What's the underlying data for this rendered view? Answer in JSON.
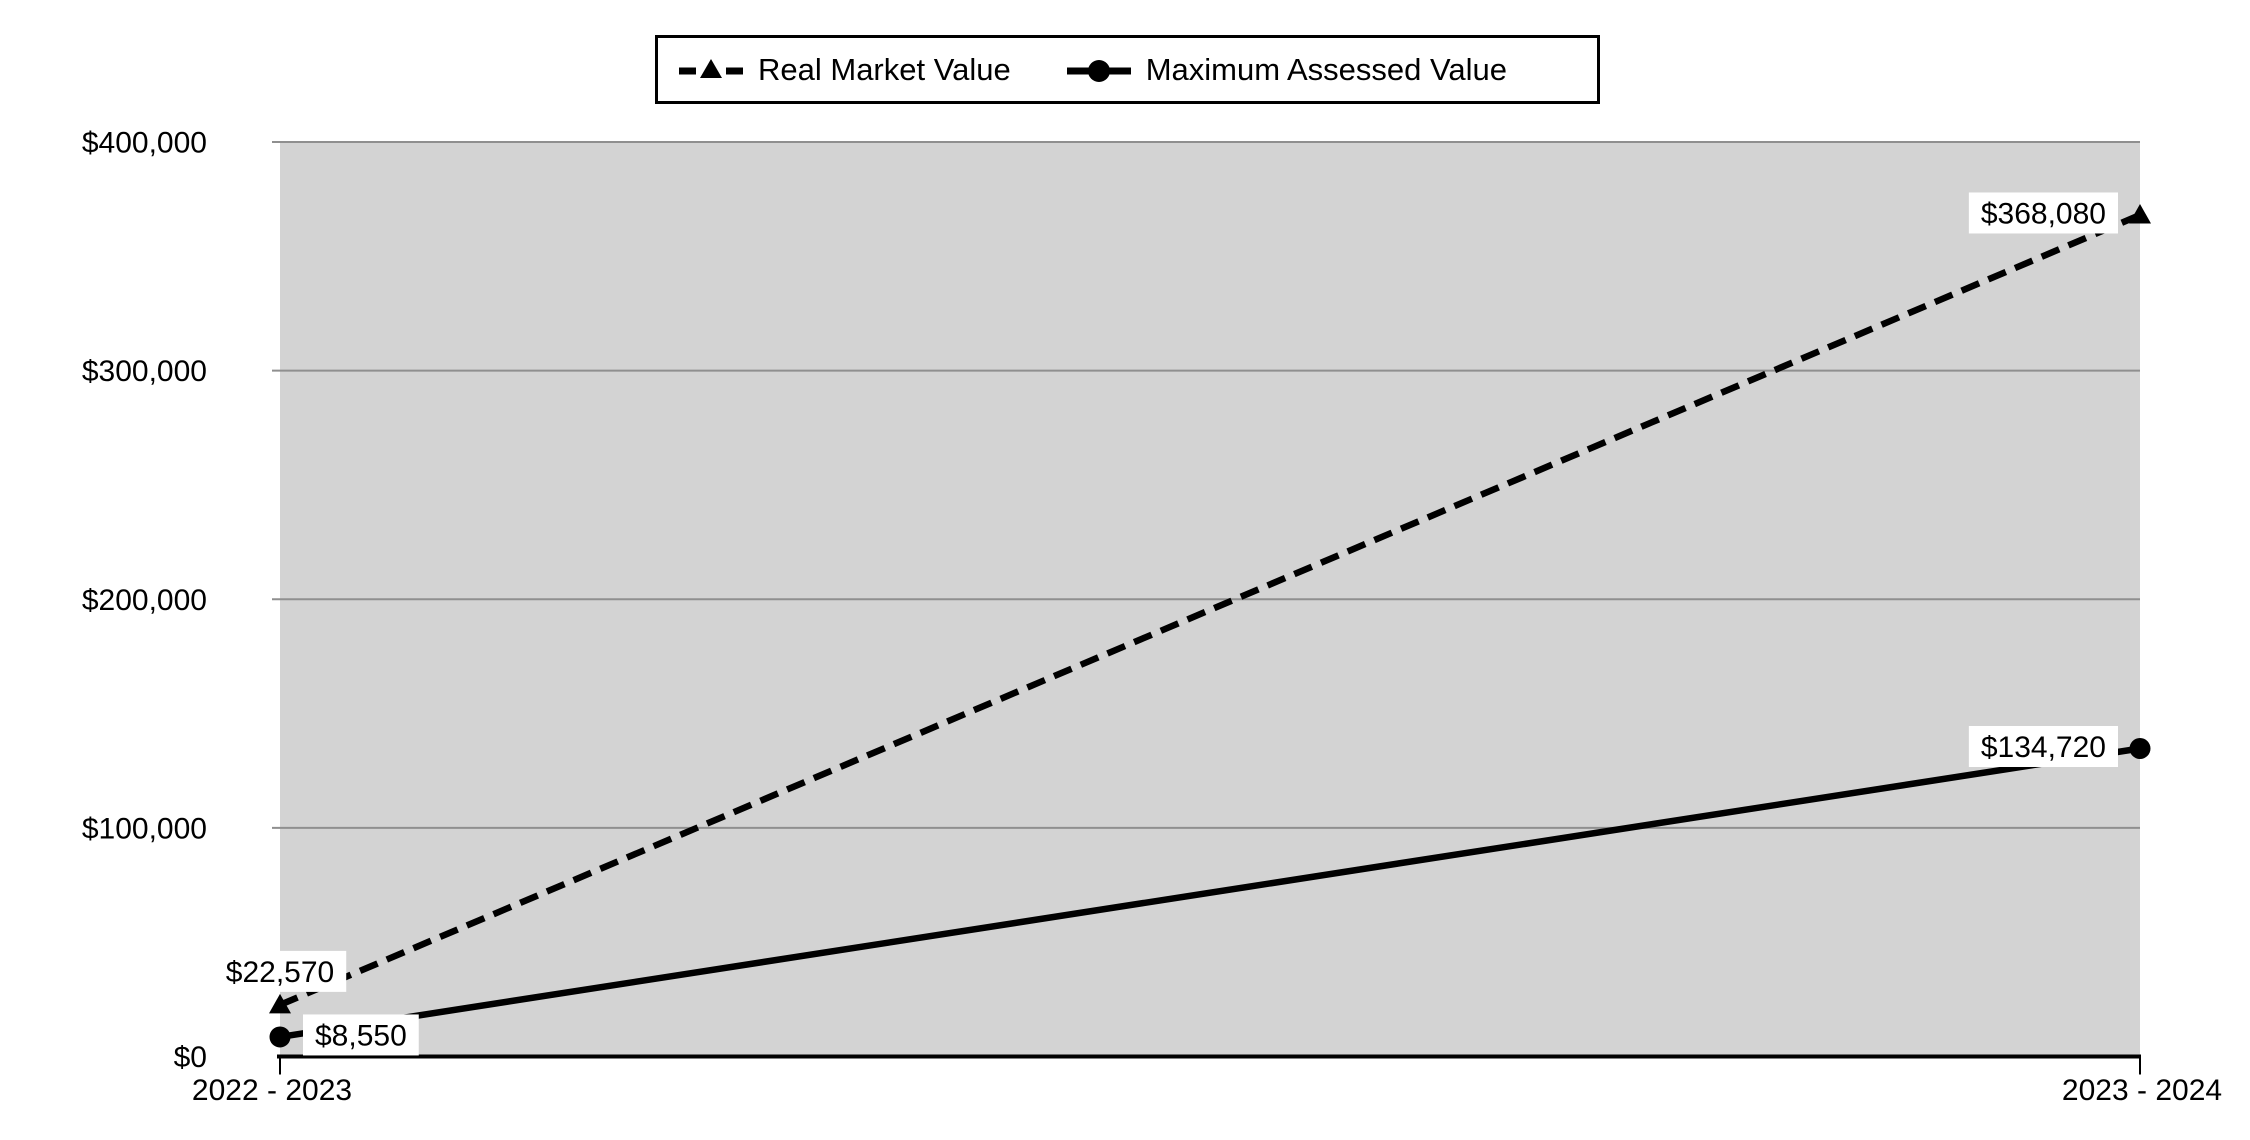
{
  "chart_data": {
    "type": "line",
    "title": "",
    "categories": [
      "2022 - 2023",
      "2023 - 2024"
    ],
    "series": [
      {
        "name": "Real Market Value",
        "values": [
          22570,
          368080
        ],
        "data_labels": [
          "$22,570",
          "$368,080"
        ],
        "line_style": "dashed",
        "marker": "triangle",
        "color": "#000000",
        "label_placement": [
          "above",
          "left"
        ]
      },
      {
        "name": "Maximum Assessed Value",
        "values": [
          8550,
          134720
        ],
        "data_labels": [
          "$8,550",
          "$134,720"
        ],
        "line_style": "solid",
        "marker": "circle",
        "color": "#000000",
        "label_placement": [
          "right",
          "left"
        ]
      }
    ],
    "y_axis": {
      "min": 0,
      "max": 400000,
      "tick_values": [
        0,
        100000,
        200000,
        300000,
        400000
      ],
      "tick_labels": [
        "$0",
        "$100,000",
        "$200,000",
        "$300,000",
        "$400,000"
      ]
    },
    "legend_position": "top",
    "grid": true,
    "colors": {
      "plot_background": "#d3d3d3",
      "gridline": "#8f8f8f",
      "axis": "#000000",
      "label_background": "#ffffff",
      "text": "#000000"
    }
  }
}
